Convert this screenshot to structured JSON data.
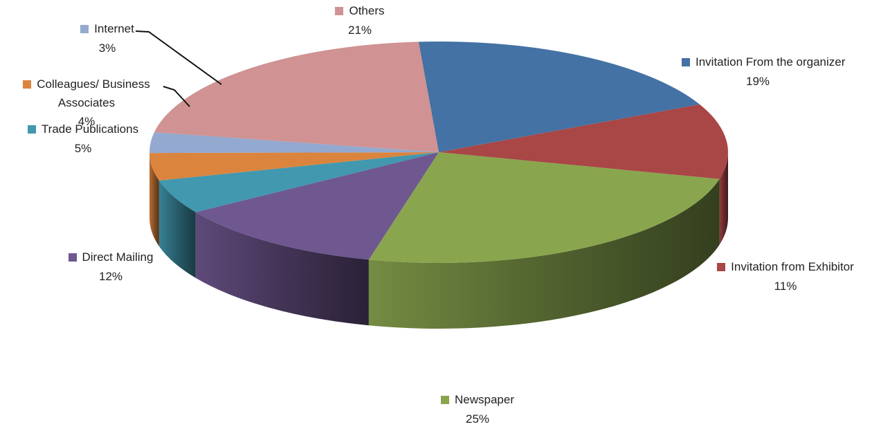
{
  "chart_data": {
    "type": "pie",
    "title": "",
    "style": "3d-exploded-pie",
    "slices": [
      {
        "label": "Invitation From the organizer",
        "value": 19,
        "value_label": "19%",
        "color": "#4472A4"
      },
      {
        "label": "Invitation from Exhibitor",
        "value": 11,
        "value_label": "11%",
        "color": "#A94646"
      },
      {
        "label": "Newspaper",
        "value": 25,
        "value_label": "25%",
        "color": "#89A54E"
      },
      {
        "label": "Direct Mailing",
        "value": 12,
        "value_label": "12%",
        "color": "#6F5790"
      },
      {
        "label": "Trade Publications",
        "value": 5,
        "value_label": "5%",
        "color": "#4198AF"
      },
      {
        "label": "Colleagues/ Business Associates",
        "value": 4,
        "value_label": "4%",
        "color": "#DB843D"
      },
      {
        "label": "Internet",
        "value": 3,
        "value_label": "3%",
        "color": "#93A9CF"
      },
      {
        "label": "Others",
        "value": 21,
        "value_label": "21%",
        "color": "#D09292"
      }
    ]
  }
}
